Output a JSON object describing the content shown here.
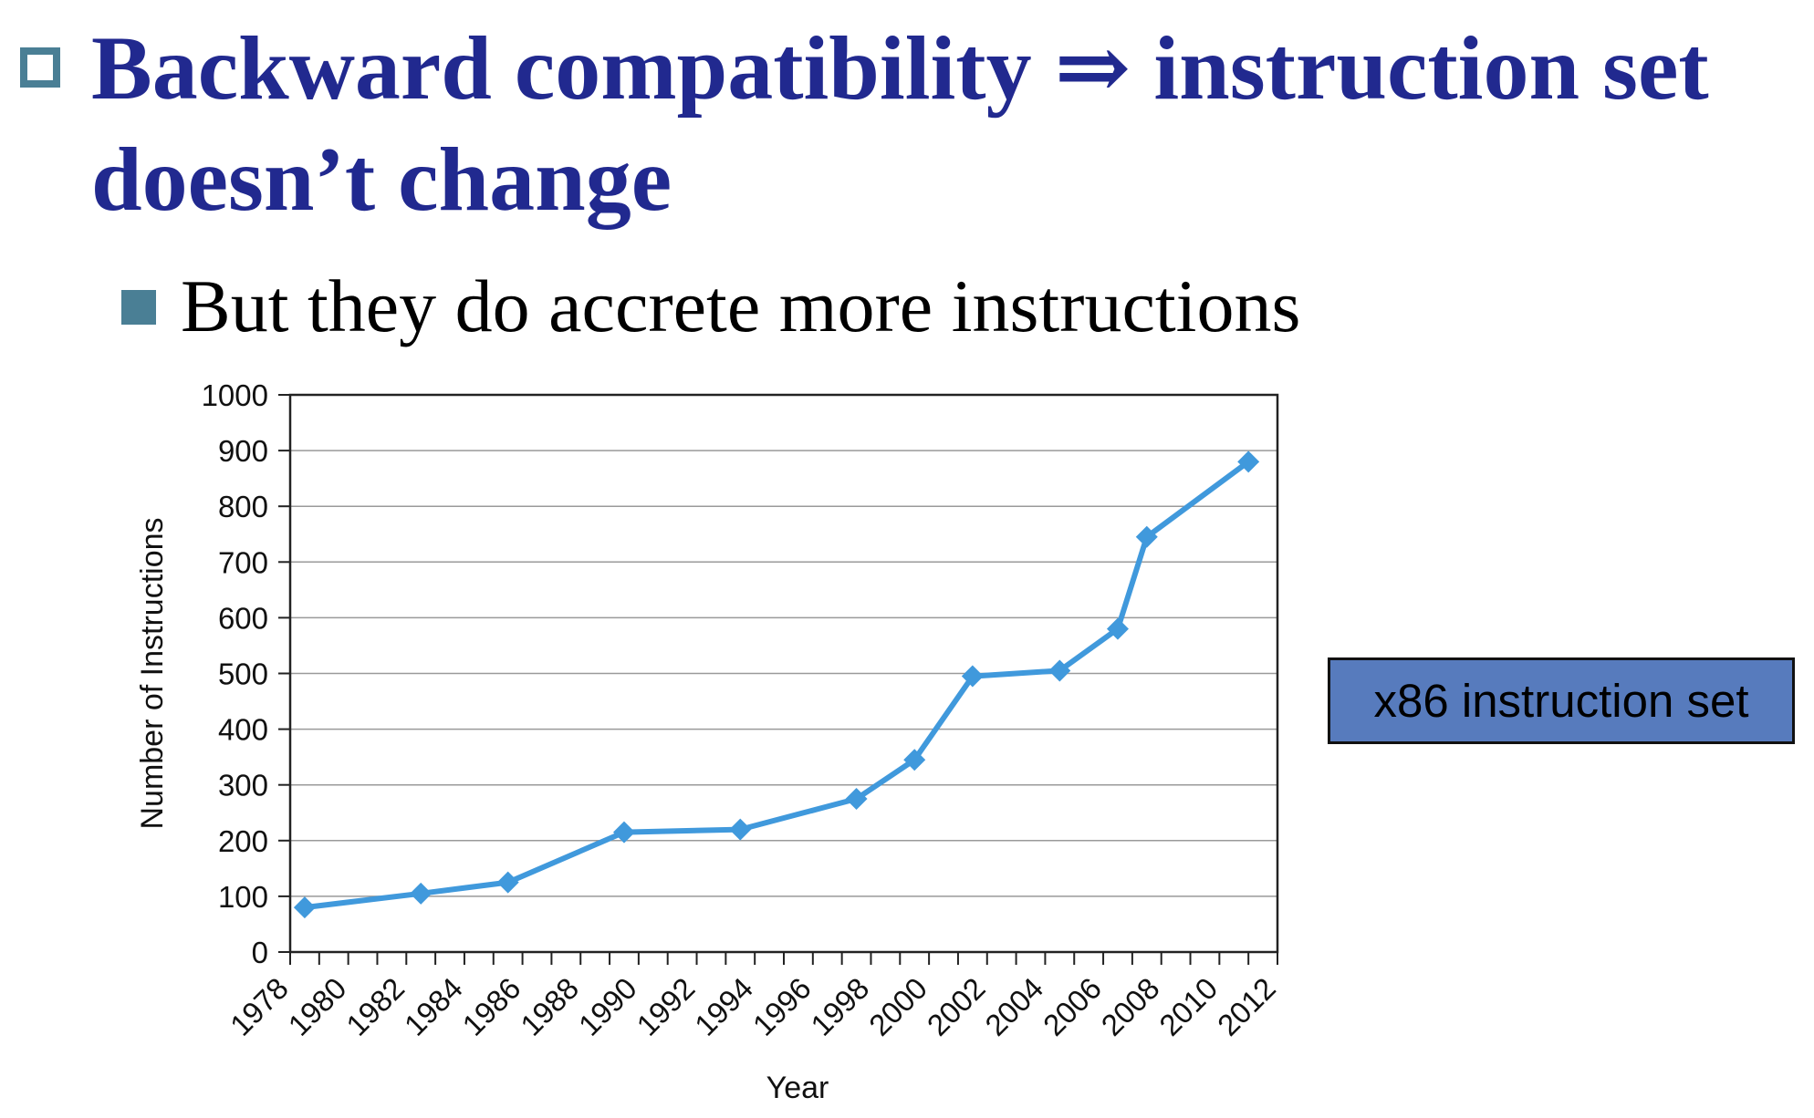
{
  "slide": {
    "title": "Backward compatibility ⇒ instruction set doesn’t change",
    "bullet": "But they do accrete more instructions",
    "callout": "x86 instruction set",
    "colors": {
      "title": "#21298f",
      "bullet": "#4a7f95",
      "callout_fill": "#577bbd"
    },
    "icons": {
      "title_bullet": "hollow-square-icon",
      "sub_bullet": "filled-square-icon"
    }
  },
  "chart_data": {
    "type": "line",
    "title": "",
    "xlabel": "Year",
    "ylabel": "Number of Instructions",
    "xlim": [
      1978,
      2012
    ],
    "ylim": [
      0,
      1000
    ],
    "x_ticks": [
      1978,
      1980,
      1982,
      1984,
      1986,
      1988,
      1990,
      1992,
      1994,
      1996,
      1998,
      2000,
      2002,
      2004,
      2006,
      2008,
      2010,
      2012
    ],
    "y_ticks": [
      0,
      100,
      200,
      300,
      400,
      500,
      600,
      700,
      800,
      900,
      1000
    ],
    "grid": "horizontal",
    "legend": "none",
    "marker": "diamond",
    "series": [
      {
        "color": "#4099dc",
        "x": [
          1978.5,
          1982.5,
          1985.5,
          1989.5,
          1993.5,
          1997.5,
          1999.5,
          2001.5,
          2004.5,
          2006.5,
          2007.5,
          2011
        ],
        "values": [
          80,
          105,
          125,
          215,
          220,
          275,
          345,
          495,
          505,
          580,
          745,
          880
        ]
      }
    ]
  }
}
